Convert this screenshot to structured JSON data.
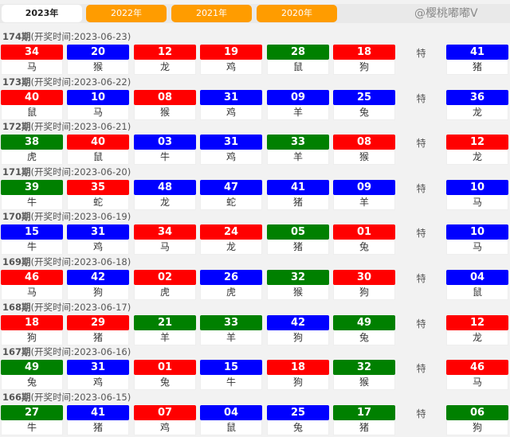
{
  "tabs": [
    {
      "label": "2023年",
      "active": true
    },
    {
      "label": "2022年"
    },
    {
      "label": "2021年"
    },
    {
      "label": "2020年"
    }
  ],
  "special_label": "特",
  "colors": {
    "r": "#ff0000",
    "b": "#0000ff",
    "g": "#008000",
    "tab": "#ff9c00"
  },
  "watermark": "@樱桃嘟嘟V",
  "periods": [
    {
      "issue": "174期",
      "time": "(开奖时间:2023-06-23)",
      "balls": [
        [
          "34",
          "r",
          "马"
        ],
        [
          "20",
          "b",
          "猴"
        ],
        [
          "12",
          "r",
          "龙"
        ],
        [
          "19",
          "r",
          "鸡"
        ],
        [
          "28",
          "g",
          "鼠"
        ],
        [
          "18",
          "r",
          "狗"
        ]
      ],
      "special": [
        "41",
        "b",
        "猪"
      ]
    },
    {
      "issue": "173期",
      "time": "(开奖时间:2023-06-22)",
      "balls": [
        [
          "40",
          "r",
          "鼠"
        ],
        [
          "10",
          "b",
          "马"
        ],
        [
          "08",
          "r",
          "猴"
        ],
        [
          "31",
          "b",
          "鸡"
        ],
        [
          "09",
          "b",
          "羊"
        ],
        [
          "25",
          "b",
          "兔"
        ]
      ],
      "special": [
        "36",
        "b",
        "龙"
      ]
    },
    {
      "issue": "172期",
      "time": "(开奖时间:2023-06-21)",
      "balls": [
        [
          "38",
          "g",
          "虎"
        ],
        [
          "40",
          "r",
          "鼠"
        ],
        [
          "03",
          "b",
          "牛"
        ],
        [
          "31",
          "b",
          "鸡"
        ],
        [
          "33",
          "g",
          "羊"
        ],
        [
          "08",
          "r",
          "猴"
        ]
      ],
      "special": [
        "12",
        "r",
        "龙"
      ]
    },
    {
      "issue": "171期",
      "time": "(开奖时间:2023-06-20)",
      "balls": [
        [
          "39",
          "g",
          "牛"
        ],
        [
          "35",
          "r",
          "蛇"
        ],
        [
          "48",
          "b",
          "龙"
        ],
        [
          "47",
          "b",
          "蛇"
        ],
        [
          "41",
          "b",
          "猪"
        ],
        [
          "09",
          "b",
          "羊"
        ]
      ],
      "special": [
        "10",
        "b",
        "马"
      ]
    },
    {
      "issue": "170期",
      "time": "(开奖时间:2023-06-19)",
      "balls": [
        [
          "15",
          "b",
          "牛"
        ],
        [
          "31",
          "b",
          "鸡"
        ],
        [
          "34",
          "r",
          "马"
        ],
        [
          "24",
          "r",
          "龙"
        ],
        [
          "05",
          "g",
          "猪"
        ],
        [
          "01",
          "r",
          "兔"
        ]
      ],
      "special": [
        "10",
        "b",
        "马"
      ]
    },
    {
      "issue": "169期",
      "time": "(开奖时间:2023-06-18)",
      "balls": [
        [
          "46",
          "r",
          "马"
        ],
        [
          "42",
          "b",
          "狗"
        ],
        [
          "02",
          "r",
          "虎"
        ],
        [
          "26",
          "b",
          "虎"
        ],
        [
          "32",
          "g",
          "猴"
        ],
        [
          "30",
          "r",
          "狗"
        ]
      ],
      "special": [
        "04",
        "b",
        "鼠"
      ]
    },
    {
      "issue": "168期",
      "time": "(开奖时间:2023-06-17)",
      "balls": [
        [
          "18",
          "r",
          "狗"
        ],
        [
          "29",
          "r",
          "猪"
        ],
        [
          "21",
          "g",
          "羊"
        ],
        [
          "33",
          "g",
          "羊"
        ],
        [
          "42",
          "b",
          "狗"
        ],
        [
          "49",
          "g",
          "兔"
        ]
      ],
      "special": [
        "12",
        "r",
        "龙"
      ]
    },
    {
      "issue": "167期",
      "time": "(开奖时间:2023-06-16)",
      "balls": [
        [
          "49",
          "g",
          "兔"
        ],
        [
          "31",
          "b",
          "鸡"
        ],
        [
          "01",
          "r",
          "兔"
        ],
        [
          "15",
          "b",
          "牛"
        ],
        [
          "18",
          "r",
          "狗"
        ],
        [
          "32",
          "g",
          "猴"
        ]
      ],
      "special": [
        "46",
        "r",
        "马"
      ]
    },
    {
      "issue": "166期",
      "time": "(开奖时间:2023-06-15)",
      "balls": [
        [
          "27",
          "g",
          "牛"
        ],
        [
          "41",
          "b",
          "猪"
        ],
        [
          "07",
          "r",
          "鸡"
        ],
        [
          "04",
          "b",
          "鼠"
        ],
        [
          "25",
          "b",
          "兔"
        ],
        [
          "17",
          "g",
          "猪"
        ]
      ],
      "special": [
        "06",
        "g",
        "狗"
      ]
    }
  ]
}
